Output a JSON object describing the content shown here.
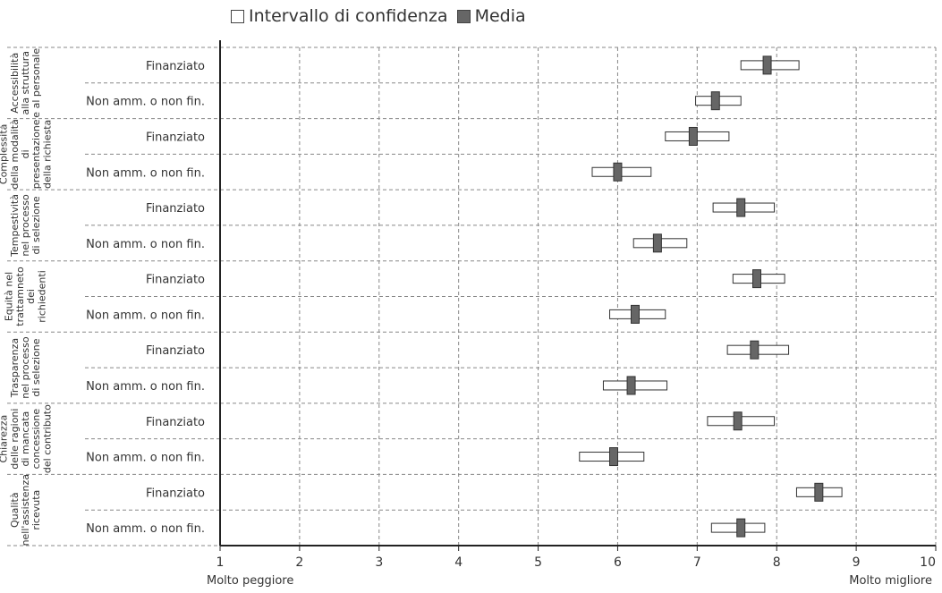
{
  "legend": {
    "ci_label": "Intervallo di confidenza",
    "mean_label": "Media"
  },
  "x_captions": {
    "left": "Molto peggiore",
    "right": "Molto migliore"
  },
  "colors": {
    "mean_fill": "#666666",
    "ci_fill": "#ffffff",
    "grid": "#888888",
    "axis": "#222222"
  },
  "chart_data": {
    "type": "box",
    "xlim": [
      1,
      10
    ],
    "xticks": [
      1,
      2,
      3,
      4,
      5,
      6,
      7,
      8,
      9,
      10
    ],
    "series": [
      {
        "name": "Intervallo di confidenza",
        "kind": "interval"
      },
      {
        "name": "Media",
        "kind": "point"
      }
    ],
    "groups": [
      {
        "label": [
          "Accessibilità",
          "alla struttura",
          "e al personale"
        ],
        "rows": [
          {
            "label": "Finanziato",
            "low": 7.55,
            "high": 8.28,
            "mean": 7.88
          },
          {
            "label": "Non amm. o non fin.",
            "low": 6.98,
            "high": 7.55,
            "mean": 7.23
          }
        ]
      },
      {
        "label": [
          "Complessità",
          "della modalità",
          "di",
          "presentazione",
          "della richiesta"
        ],
        "rows": [
          {
            "label": "Finanziato",
            "low": 6.6,
            "high": 7.4,
            "mean": 6.95
          },
          {
            "label": "Non amm. o non fin.",
            "low": 5.68,
            "high": 6.42,
            "mean": 6.0
          }
        ]
      },
      {
        "label": [
          "Tempestività",
          "nel processo",
          "di selezione"
        ],
        "rows": [
          {
            "label": "Finanziato",
            "low": 7.2,
            "high": 7.97,
            "mean": 7.55
          },
          {
            "label": "Non amm. o non fin.",
            "low": 6.2,
            "high": 6.87,
            "mean": 6.5
          }
        ]
      },
      {
        "label": [
          "Equità nel",
          "trattamneto",
          "dei",
          "richiedenti"
        ],
        "rows": [
          {
            "label": "Finanziato",
            "low": 7.45,
            "high": 8.1,
            "mean": 7.75
          },
          {
            "label": "Non amm. o non fin.",
            "low": 5.9,
            "high": 6.6,
            "mean": 6.22
          }
        ]
      },
      {
        "label": [
          "Trasparenza",
          "nel processo",
          "di selezione"
        ],
        "rows": [
          {
            "label": "Finanziato",
            "low": 7.38,
            "high": 8.15,
            "mean": 7.72
          },
          {
            "label": "Non amm. o non fin.",
            "low": 5.82,
            "high": 6.62,
            "mean": 6.17
          }
        ]
      },
      {
        "label": [
          "Chiarezza",
          "delle ragioni",
          "di mancata",
          "concessione",
          "del contributo"
        ],
        "rows": [
          {
            "label": "Finanziato",
            "low": 7.13,
            "high": 7.97,
            "mean": 7.51
          },
          {
            "label": "Non amm. o non fin.",
            "low": 5.52,
            "high": 6.33,
            "mean": 5.95
          }
        ]
      },
      {
        "label": [
          "Qualità",
          "nell'assistenza",
          "ricevuta"
        ],
        "rows": [
          {
            "label": "Finanziato",
            "low": 8.25,
            "high": 8.82,
            "mean": 8.53
          },
          {
            "label": "Non amm. o non fin.",
            "low": 7.18,
            "high": 7.85,
            "mean": 7.55
          }
        ]
      }
    ]
  }
}
